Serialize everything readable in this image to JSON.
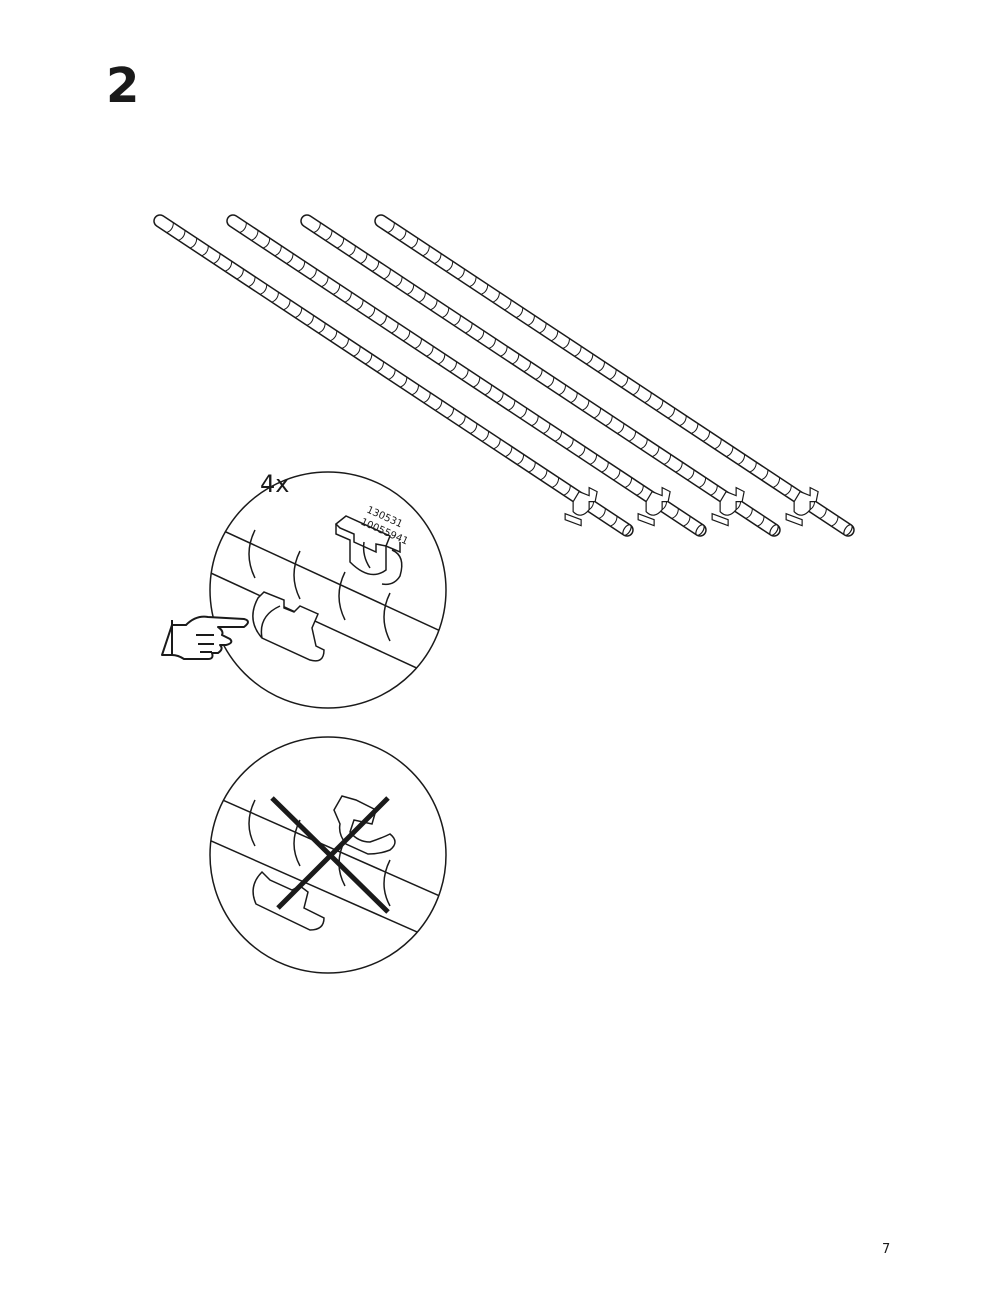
{
  "step": {
    "number": "2"
  },
  "detail_correct": {
    "quantity": "4x",
    "part_numbers": [
      "130531",
      "10055941"
    ]
  },
  "detail_incorrect": {},
  "page": {
    "number": "7"
  }
}
